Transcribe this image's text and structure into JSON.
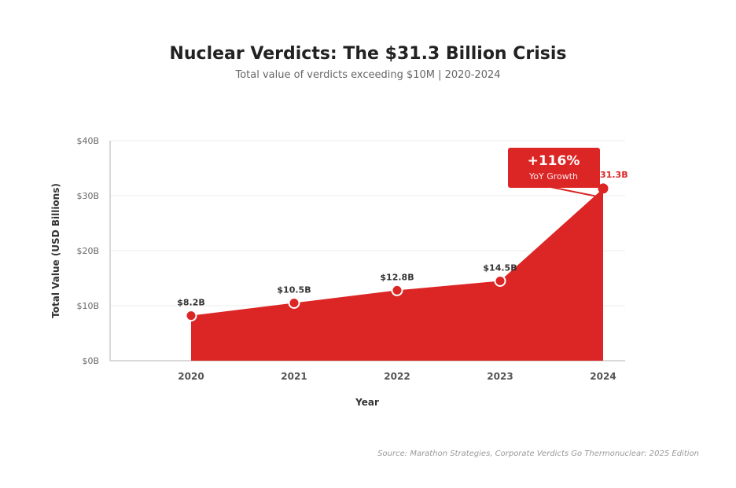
{
  "title": "Nuclear Verdicts: The $31.3 Billion Crisis",
  "subtitle": "Total value of verdicts exceeding $10M | 2020-2024",
  "source": "Source: Marathon Strategies, Corporate Verdicts Go Thermonuclear: 2025 Edition",
  "colors": {
    "accent": "#dc2626",
    "text": "#333333",
    "grid": "#eeeeee"
  },
  "chart_data": {
    "type": "area",
    "title": "Nuclear Verdicts: The $31.3 Billion Crisis",
    "xlabel": "Year",
    "ylabel": "Total Value (USD Billions)",
    "categories": [
      "2020",
      "2021",
      "2022",
      "2023",
      "2024"
    ],
    "values": [
      8.2,
      10.5,
      12.8,
      14.5,
      31.3
    ],
    "data_labels": [
      "$8.2B",
      "$10.5B",
      "$12.8B",
      "$14.5B",
      "$31.3B"
    ],
    "ylim": [
      0,
      40
    ],
    "yticks": [
      0,
      10,
      20,
      30,
      40
    ],
    "ytick_labels": [
      "$0B",
      "$10B",
      "$20B",
      "$30B",
      "$40B"
    ],
    "grid": true,
    "annotation": {
      "value": "+116%",
      "label": "YoY Growth"
    }
  }
}
